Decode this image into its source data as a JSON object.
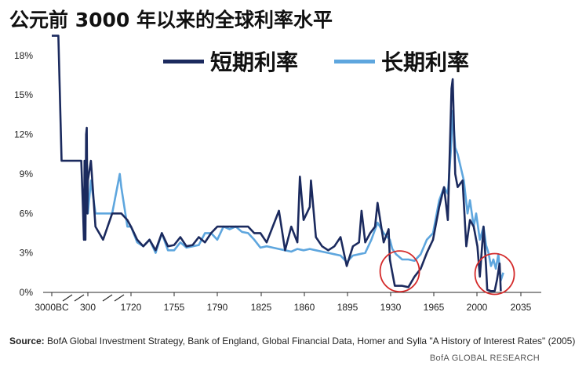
{
  "chart_data": {
    "type": "line",
    "title": "公元前 3000 年以来的全球利率水平",
    "xlabel": "",
    "ylabel": "",
    "x_ticks": [
      "3000BC",
      "300",
      "1720",
      "1755",
      "1790",
      "1825",
      "1860",
      "1895",
      "1930",
      "1965",
      "2000",
      "2035"
    ],
    "y_ticks": [
      "0%",
      "3%",
      "6%",
      "9%",
      "12%",
      "15%",
      "18%"
    ],
    "ylim": [
      0,
      19
    ],
    "grid": false,
    "legend_position": "top",
    "series": [
      {
        "name": "短期利率",
        "color": "#1b2a5e",
        "points": [
          [
            "-3000",
            19.5
          ],
          [
            "-2700",
            19.5
          ],
          [
            "-2400",
            19.5
          ],
          [
            "-2100",
            10
          ],
          [
            "-1700",
            10
          ],
          [
            "-1400",
            10
          ],
          [
            "-1000",
            10
          ],
          [
            "-700",
            10
          ],
          [
            "-500",
            10
          ],
          [
            "-300",
            10
          ],
          [
            "-150",
            6.5
          ],
          [
            "-60",
            4
          ],
          [
            "0",
            10
          ],
          [
            "80",
            4
          ],
          [
            "140",
            12
          ],
          [
            "200",
            12.5
          ],
          [
            "260",
            6
          ],
          [
            "300",
            8.5
          ],
          [
            "400",
            10
          ],
          [
            "550",
            5
          ],
          [
            "800",
            4
          ],
          [
            "1100",
            6
          ],
          [
            "1400",
            6
          ],
          [
            "1600",
            5.5
          ],
          [
            "1720",
            5
          ],
          [
            "1725",
            4
          ],
          [
            "1730",
            3.5
          ],
          [
            "1735",
            4
          ],
          [
            "1740",
            3.2
          ],
          [
            "1745",
            4.5
          ],
          [
            "1750",
            3.5
          ],
          [
            "1755",
            3.6
          ],
          [
            "1760",
            4.2
          ],
          [
            "1765",
            3.5
          ],
          [
            "1770",
            3.6
          ],
          [
            "1775",
            4.2
          ],
          [
            "1780",
            3.8
          ],
          [
            "1785",
            4.5
          ],
          [
            "1790",
            5
          ],
          [
            "1795",
            5
          ],
          [
            "1800",
            5
          ],
          [
            "1805",
            5
          ],
          [
            "1810",
            5
          ],
          [
            "1815",
            5
          ],
          [
            "1820",
            4.5
          ],
          [
            "1825",
            4.5
          ],
          [
            "1830",
            3.8
          ],
          [
            "1835",
            5
          ],
          [
            "1840",
            6.2
          ],
          [
            "1845",
            3.2
          ],
          [
            "1850",
            5
          ],
          [
            "1855",
            3.8
          ],
          [
            "1857",
            8.8
          ],
          [
            "1860",
            5.5
          ],
          [
            "1865",
            6.5
          ],
          [
            "1866",
            8.5
          ],
          [
            "1870",
            4.2
          ],
          [
            "1875",
            3.5
          ],
          [
            "1880",
            3.2
          ],
          [
            "1885",
            3.5
          ],
          [
            "1890",
            4.2
          ],
          [
            "1895",
            2
          ],
          [
            "1900",
            3.5
          ],
          [
            "1905",
            3.8
          ],
          [
            "1907",
            6.2
          ],
          [
            "1910",
            3.8
          ],
          [
            "1914",
            4.5
          ],
          [
            "1918",
            5
          ],
          [
            "1920",
            6.8
          ],
          [
            "1925",
            3.8
          ],
          [
            "1929",
            4.8
          ],
          [
            "1930",
            2.5
          ],
          [
            "1932",
            1.5
          ],
          [
            "1934",
            0.5
          ],
          [
            "1940",
            0.5
          ],
          [
            "1945",
            0.4
          ],
          [
            "1950",
            1.2
          ],
          [
            "1955",
            1.8
          ],
          [
            "1960",
            3
          ],
          [
            "1965",
            4
          ],
          [
            "1970",
            6.5
          ],
          [
            "1974",
            8
          ],
          [
            "1977",
            5.5
          ],
          [
            "1980",
            15.5
          ],
          [
            "1981",
            16.2
          ],
          [
            "1983",
            9
          ],
          [
            "1985",
            8
          ],
          [
            "1989",
            8.5
          ],
          [
            "1992",
            3.5
          ],
          [
            "1995",
            5.5
          ],
          [
            "1998",
            5
          ],
          [
            "2001",
            3.5
          ],
          [
            "2003",
            1.2
          ],
          [
            "2006",
            5
          ],
          [
            "2008",
            2
          ],
          [
            "2009",
            0.2
          ],
          [
            "2012",
            0.1
          ],
          [
            "2015",
            0.1
          ],
          [
            "2017",
            1
          ],
          [
            "2019",
            2.2
          ],
          [
            "2020",
            0.1
          ]
        ]
      },
      {
        "name": "长期利率",
        "color": "#5ea6de",
        "points": [
          [
            "200",
            10
          ],
          [
            "300",
            6
          ],
          [
            "400",
            8.5
          ],
          [
            "550",
            6
          ],
          [
            "800",
            6
          ],
          [
            "1100",
            6
          ],
          [
            "1350",
            9
          ],
          [
            "1400",
            8
          ],
          [
            "1600",
            5
          ],
          [
            "1720",
            5
          ],
          [
            "1725",
            3.8
          ],
          [
            "1730",
            3.5
          ],
          [
            "1735",
            4
          ],
          [
            "1740",
            3
          ],
          [
            "1745",
            4.5
          ],
          [
            "1750",
            3.2
          ],
          [
            "1755",
            3.2
          ],
          [
            "1760",
            3.8
          ],
          [
            "1765",
            3.4
          ],
          [
            "1770",
            3.5
          ],
          [
            "1775",
            3.6
          ],
          [
            "1780",
            4.5
          ],
          [
            "1785",
            4.5
          ],
          [
            "1790",
            4
          ],
          [
            "1795",
            5
          ],
          [
            "1800",
            4.8
          ],
          [
            "1805",
            5
          ],
          [
            "1810",
            4.6
          ],
          [
            "1815",
            4.5
          ],
          [
            "1820",
            4
          ],
          [
            "1825",
            3.4
          ],
          [
            "1830",
            3.5
          ],
          [
            "1835",
            3.4
          ],
          [
            "1840",
            3.3
          ],
          [
            "1845",
            3.2
          ],
          [
            "1850",
            3.1
          ],
          [
            "1855",
            3.3
          ],
          [
            "1860",
            3.2
          ],
          [
            "1865",
            3.3
          ],
          [
            "1870",
            3.2
          ],
          [
            "1875",
            3.1
          ],
          [
            "1880",
            3
          ],
          [
            "1885",
            2.9
          ],
          [
            "1890",
            2.8
          ],
          [
            "1895",
            2.3
          ],
          [
            "1900",
            2.8
          ],
          [
            "1905",
            2.9
          ],
          [
            "1910",
            3
          ],
          [
            "1915",
            4
          ],
          [
            "1920",
            5.3
          ],
          [
            "1925",
            4.5
          ],
          [
            "1930",
            4
          ],
          [
            "1932",
            3.3
          ],
          [
            "1935",
            2.9
          ],
          [
            "1940",
            2.5
          ],
          [
            "1945",
            2.5
          ],
          [
            "1950",
            2.4
          ],
          [
            "1955",
            2.9
          ],
          [
            "1960",
            4
          ],
          [
            "1965",
            4.5
          ],
          [
            "1970",
            7
          ],
          [
            "1974",
            8
          ],
          [
            "1977",
            7.5
          ],
          [
            "1980",
            11.5
          ],
          [
            "1981",
            13.8
          ],
          [
            "1983",
            11
          ],
          [
            "1985",
            10.5
          ],
          [
            "1990",
            8.5
          ],
          [
            "1993",
            6
          ],
          [
            "1995",
            7
          ],
          [
            "1998",
            5
          ],
          [
            "2000",
            6
          ],
          [
            "2003",
            4
          ],
          [
            "2006",
            5
          ],
          [
            "2008",
            3.6
          ],
          [
            "2010",
            3
          ],
          [
            "2012",
            2
          ],
          [
            "2014",
            2.5
          ],
          [
            "2016",
            1.8
          ],
          [
            "2018",
            2.9
          ],
          [
            "2020",
            0.9
          ],
          [
            "2022",
            1.5
          ]
        ]
      }
    ],
    "annotations": [
      "circle-around-1930s-low",
      "circle-around-2010s-low"
    ]
  },
  "legend": [
    {
      "label": "短期利率",
      "color": "#1b2a5e"
    },
    {
      "label": "长期利率",
      "color": "#5ea6de"
    }
  ],
  "source_label": "Source:",
  "source_text": "BofA Global Investment Strategy, Bank of England, Global Financial Data, Homer and Sylla \"A History of Interest Rates\" (2005)",
  "brand": "BofA GLOBAL RESEARCH",
  "colors": {
    "axis": "#2a2a2a",
    "circle": "#d42a2a"
  }
}
